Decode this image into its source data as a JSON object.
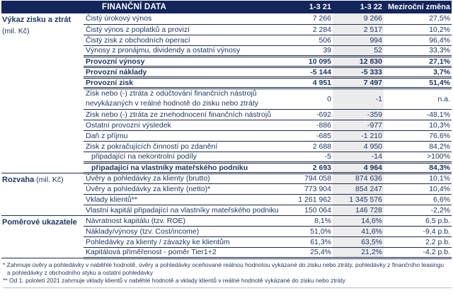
{
  "colors": {
    "header_bg": "#13265b",
    "text": "#1f3864",
    "border": "#1e2a4a",
    "highlight_col_bg": "#ececec"
  },
  "header": {
    "title": "FINANČNÍ DATA",
    "col_period1": "1-3 21",
    "col_period2": "1-3 22",
    "col_change": "Meziroční změna"
  },
  "sections": [
    {
      "label": "Výkaz zisku a ztrát",
      "unit": "(mil. Kč)",
      "unit_inline": false,
      "rows": [
        {
          "desc": "Čistý úrokový výnos",
          "v1": "7 266",
          "v2": "9 266",
          "change": "27,5%"
        },
        {
          "desc": "Čistý výnos z poplatků a provizí",
          "v1": "2 284",
          "v2": "2 517",
          "change": "10,2%"
        },
        {
          "desc": "Čistý zisk z obchodních operací",
          "v1": "506",
          "v2": "994",
          "change": "96,4%"
        },
        {
          "desc": "Výnosy z pronájmu, dividendy a ostatní výnosy",
          "v1": "39",
          "v2": "52",
          "change": "33,3%"
        },
        {
          "desc": "Provozní výnosy",
          "v1": "10 095",
          "v2": "12 830",
          "change": "27,1%",
          "bold": true
        },
        {
          "desc": "Provozní náklady",
          "v1": "-5 144",
          "v2": "-5 333",
          "change": "3,7%",
          "bold": true
        },
        {
          "desc": "Provozní zisk",
          "v1": "4 951",
          "v2": "7 497",
          "change": "51,4%",
          "bold": true
        },
        {
          "desc": "Zisk nebo (-) ztráta z odúčtování finančních nástrojů nevykázaných v reálné hodnotě do zisku nebo ztráty",
          "v1": "0",
          "v2": "-1",
          "change": "n.a.",
          "tall": true
        },
        {
          "desc": "Zisk nebo (-) ztráta ze znehodnocení finančních nástrojů",
          "v1": "-692",
          "v2": "-359",
          "change": "-48,1%"
        },
        {
          "desc": "Ostatní provozní výsledek",
          "v1": "-886",
          "v2": "-977",
          "change": "10,3%"
        },
        {
          "desc": "Daň z příjmu",
          "v1": "-685",
          "v2": "-1 210",
          "change": "76,6%"
        },
        {
          "desc": "Zisk z pokračujících činností po zdanění",
          "v1": "2 688",
          "v2": "4 950",
          "change": "84,2%"
        },
        {
          "desc": "připadající na nekontrolní podíly",
          "v1": "-5",
          "v2": "-14",
          "change": ">100%",
          "indent": true
        },
        {
          "desc": "připadající na vlastníky mateřského podniku",
          "v1": "2 693",
          "v2": "4 964",
          "change": "84,3%",
          "indent": true,
          "bold": true
        }
      ]
    },
    {
      "label": "Rozvaha",
      "unit": "(mil. Kč)",
      "unit_inline": true,
      "rows": [
        {
          "desc": "Úvěry a pohledávky za klienty (brutto)",
          "v1": "794 058",
          "v2": "874 636",
          "change": "10,1%"
        },
        {
          "desc": "Úvěry a pohledávky za klienty (netto)*",
          "v1": "773 904",
          "v2": "854 247",
          "change": "10,4%"
        },
        {
          "desc": "Vklady klientů**",
          "v1": "1 261 962",
          "v2": "1 345 576",
          "change": "6,6%"
        },
        {
          "desc": "Vlastní kapitál připadající na vlastníky mateřského podniku",
          "v1": "150 064",
          "v2": "146 728",
          "change": "-2,2%"
        }
      ]
    },
    {
      "label": "Poměrové ukazatele",
      "unit": "",
      "unit_inline": true,
      "rows": [
        {
          "desc": "Návratnost kapitálu (tzv. ROE)",
          "v1": "8,1%",
          "v2": "14,6%",
          "change": "6,5 p.b."
        },
        {
          "desc": "Náklady/výnosy (tzv. Cost/income)",
          "v1": "51,0%",
          "v2": "41,6%",
          "change": "-9,4 p.b."
        },
        {
          "desc": "Pohledávky za klienty / závazky ke klientům",
          "v1": "61,3%",
          "v2": "63,5%",
          "change": "2,2 p.b."
        },
        {
          "desc": "Kapitálová přiměřenost - poměr Tier1+2",
          "v1": "25,4%",
          "v2": "21,2%",
          "change": "-4,2 p.b."
        }
      ]
    }
  ],
  "footnotes": [
    "* Zahrnuje úvěry a pohledávky v naběhlé hodnotě, úvěry a pohledávky oceňované reálnou hodnotou vykázané do zisku nebo ztráty, pohledávky z finančního leasingu",
    "a pohledávky z obchodního styku a ostatní pohledávky",
    "** Od 1. pololetí 2021 zahrnuje vklady klientů v naběhlé hodnotě a vklady klientů v reálné hodnotě vykázané do zisku nebo ztráty"
  ]
}
